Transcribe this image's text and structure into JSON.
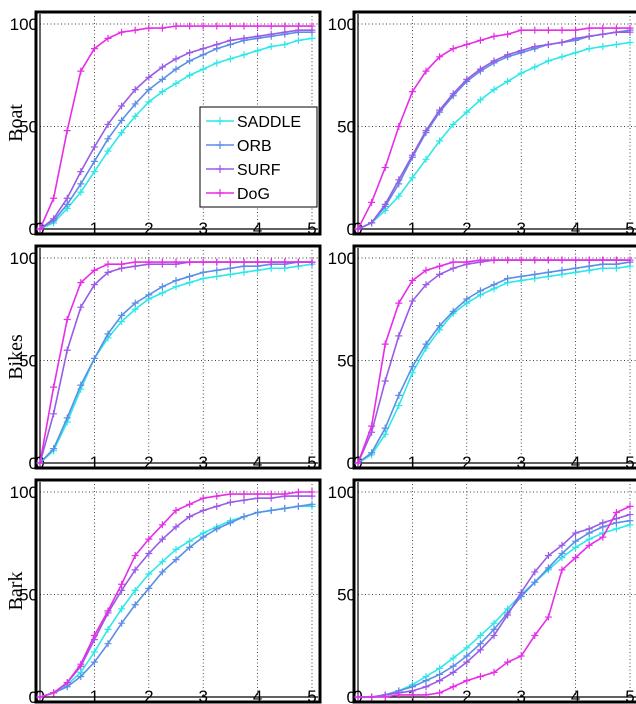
{
  "chart_data": {
    "type": "line",
    "x": [
      0,
      0.25,
      0.5,
      0.75,
      1,
      1.25,
      1.5,
      1.75,
      2,
      2.25,
      2.5,
      2.75,
      3,
      3.25,
      3.5,
      3.75,
      4,
      4.25,
      4.5,
      4.75,
      5
    ],
    "xlim": [
      0,
      5
    ],
    "ylim": [
      0,
      100
    ],
    "xticks": [
      "0",
      "1",
      "2",
      "3",
      "4",
      "5"
    ],
    "yticks": [
      "0",
      "50",
      "100"
    ],
    "grid": true,
    "legend": {
      "placement": "center-right",
      "entries": [
        "SADDLE",
        "ORB",
        "SURF",
        "DoG"
      ]
    },
    "series_colors": {
      "SADDLE": "#2ee8e8",
      "ORB": "#5b8ee6",
      "SURF": "#9a5be6",
      "DoG": "#e62ee6"
    },
    "row_labels": [
      "Boat",
      "Bikes",
      "Bark"
    ],
    "panels": [
      {
        "row": 0,
        "col": 0,
        "series": [
          {
            "name": "SADDLE",
            "values": [
              0,
              3,
              10,
              18,
              28,
              38,
              47,
              55,
              62,
              67,
              71,
              75,
              78,
              81,
              83,
              85,
              87,
              89,
              90,
              92,
              93
            ]
          },
          {
            "name": "ORB",
            "values": [
              0,
              4,
              12,
              22,
              33,
              44,
              53,
              61,
              68,
              73,
              78,
              82,
              85,
              88,
              90,
              92,
              93,
              94,
              95,
              96,
              96
            ]
          },
          {
            "name": "SURF",
            "values": [
              0,
              5,
              15,
              28,
              40,
              51,
              60,
              68,
              74,
              79,
              83,
              86,
              88,
              90,
              92,
              93,
              94,
              95,
              96,
              97,
              97
            ]
          },
          {
            "name": "DoG",
            "values": [
              0,
              15,
              48,
              77,
              88,
              93,
              96,
              97,
              98,
              98,
              99,
              99,
              99,
              99,
              99,
              99,
              99,
              99,
              99,
              99,
              99
            ]
          }
        ]
      },
      {
        "row": 0,
        "col": 1,
        "series": [
          {
            "name": "SADDLE",
            "values": [
              0,
              3,
              9,
              16,
              25,
              34,
              43,
              51,
              57,
              63,
              68,
              72,
              76,
              79,
              82,
              84,
              86,
              88,
              89,
              90,
              91
            ]
          },
          {
            "name": "ORB",
            "values": [
              0,
              3,
              11,
              22,
              35,
              47,
              57,
              65,
              72,
              77,
              81,
              84,
              86,
              88,
              90,
              91,
              92,
              94,
              95,
              96,
              97
            ]
          },
          {
            "name": "SURF",
            "values": [
              0,
              3,
              12,
              24,
              36,
              48,
              58,
              66,
              73,
              78,
              82,
              85,
              87,
              89,
              90,
              91,
              93,
              94,
              95,
              96,
              96
            ]
          },
          {
            "name": "DoG",
            "values": [
              0,
              13,
              30,
              50,
              67,
              77,
              84,
              88,
              90,
              92,
              94,
              95,
              97,
              97,
              97,
              97,
              97,
              98,
              98,
              98,
              98
            ]
          }
        ]
      },
      {
        "row": 1,
        "col": 0,
        "series": [
          {
            "name": "SADDLE",
            "values": [
              0,
              6,
              20,
              36,
              51,
              61,
              69,
              75,
              80,
              83,
              86,
              88,
              90,
              91,
              92,
              93,
              94,
              95,
              95,
              96,
              97
            ]
          },
          {
            "name": "ORB",
            "values": [
              0,
              7,
              22,
              38,
              51,
              63,
              72,
              78,
              82,
              86,
              89,
              91,
              93,
              94,
              95,
              96,
              96,
              97,
              97,
              98,
              98
            ]
          },
          {
            "name": "SURF",
            "values": [
              0,
              24,
              55,
              76,
              87,
              93,
              95,
              96,
              97,
              97,
              97,
              98,
              98,
              98,
              98,
              98,
              98,
              98,
              98,
              98,
              98
            ]
          },
          {
            "name": "DoG",
            "values": [
              0,
              37,
              70,
              88,
              94,
              97,
              97,
              98,
              98,
              98,
              98,
              98,
              98,
              98,
              98,
              98,
              98,
              98,
              98,
              98,
              98
            ]
          }
        ]
      },
      {
        "row": 1,
        "col": 1,
        "series": [
          {
            "name": "SADDLE",
            "values": [
              0,
              4,
              14,
              28,
              44,
              56,
              65,
              73,
              78,
              82,
              85,
              88,
              89,
              90,
              91,
              92,
              93,
              94,
              95,
              95,
              96
            ]
          },
          {
            "name": "ORB",
            "values": [
              0,
              5,
              17,
              33,
              47,
              58,
              67,
              74,
              80,
              84,
              87,
              90,
              91,
              92,
              93,
              94,
              95,
              96,
              97,
              97,
              98
            ]
          },
          {
            "name": "SURF",
            "values": [
              0,
              15,
              40,
              62,
              79,
              87,
              92,
              95,
              97,
              98,
              99,
              99,
              99,
              99,
              99,
              99,
              99,
              99,
              99,
              99,
              99
            ]
          },
          {
            "name": "DoG",
            "values": [
              0,
              18,
              58,
              78,
              89,
              94,
              96,
              98,
              98,
              99,
              99,
              99,
              99,
              99,
              99,
              99,
              99,
              99,
              99,
              99,
              99
            ]
          }
        ]
      },
      {
        "row": 2,
        "col": 0,
        "series": [
          {
            "name": "SADDLE",
            "values": [
              0,
              2,
              6,
              12,
              22,
              33,
              43,
              52,
              60,
              66,
              72,
              76,
              80,
              83,
              86,
              88,
              90,
              91,
              92,
              93,
              93
            ]
          },
          {
            "name": "ORB",
            "values": [
              0,
              2,
              5,
              10,
              17,
              26,
              36,
              45,
              53,
              61,
              67,
              73,
              78,
              82,
              85,
              88,
              90,
              91,
              92,
              93,
              94
            ]
          },
          {
            "name": "SURF",
            "values": [
              0,
              2,
              7,
              15,
              28,
              41,
              52,
              62,
              70,
              77,
              83,
              88,
              91,
              93,
              95,
              96,
              97,
              97,
              98,
              98,
              98
            ]
          },
          {
            "name": "DoG",
            "values": [
              0,
              2,
              7,
              16,
              30,
              42,
              55,
              69,
              77,
              84,
              91,
              94,
              97,
              98,
              99,
              99,
              99,
              99,
              99,
              100,
              100
            ]
          }
        ]
      },
      {
        "row": 2,
        "col": 1,
        "series": [
          {
            "name": "SADDLE",
            "values": [
              0,
              0,
              1,
              3,
              6,
              10,
              14,
              19,
              24,
              30,
              36,
              43,
              50,
              56,
              62,
              68,
              73,
              77,
              80,
              82,
              84
            ]
          },
          {
            "name": "ORB",
            "values": [
              0,
              0,
              1,
              3,
              5,
              8,
              11,
              15,
              20,
              26,
              33,
              41,
              49,
              56,
              63,
              70,
              76,
              80,
              83,
              85,
              86
            ]
          },
          {
            "name": "SURF",
            "values": [
              0,
              0,
              1,
              2,
              3,
              5,
              8,
              12,
              17,
              23,
              30,
              40,
              51,
              61,
              69,
              74,
              80,
              82,
              85,
              87,
              89
            ]
          },
          {
            "name": "DoG",
            "values": [
              0,
              0,
              0,
              1,
              1,
              1,
              2,
              5,
              8,
              10,
              12,
              17,
              20,
              30,
              39,
              62,
              68,
              74,
              78,
              90,
              93
            ]
          }
        ]
      }
    ]
  }
}
